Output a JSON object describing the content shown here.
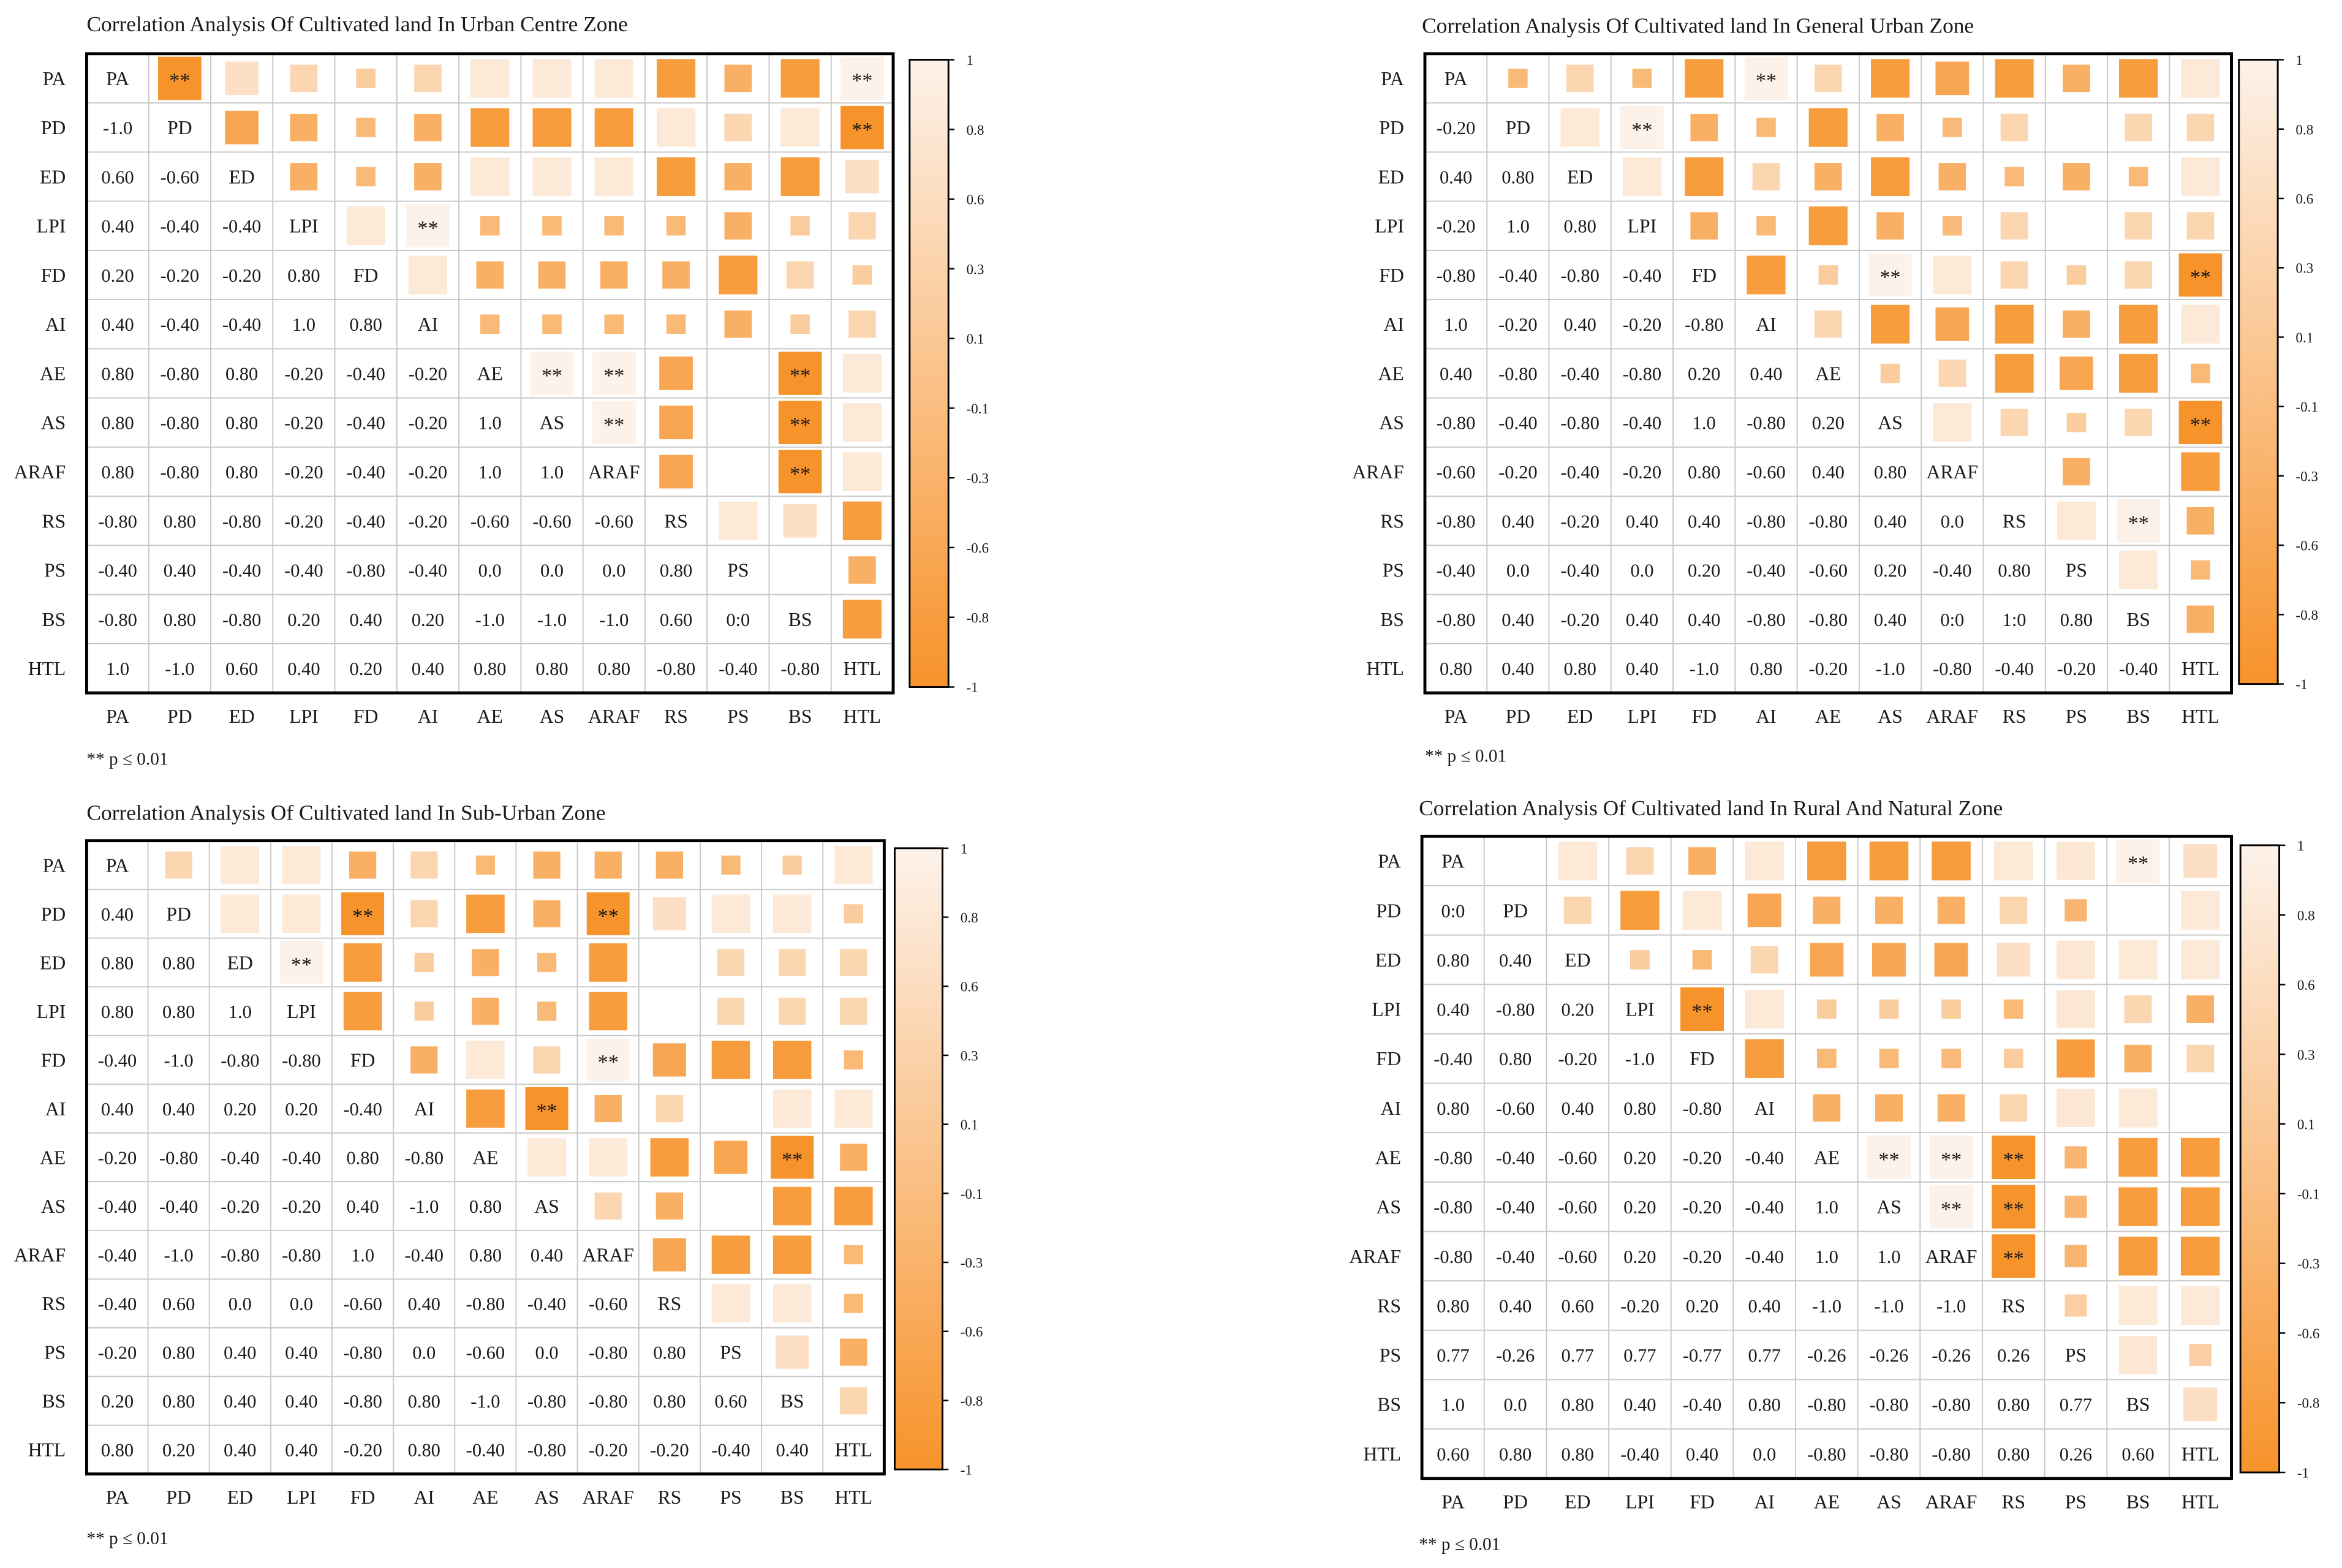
{
  "variables": [
    "PA",
    "PD",
    "ED",
    "LPI",
    "FD",
    "AI",
    "AE",
    "AS",
    "ARAF",
    "RS",
    "PS",
    "BS",
    "HTL"
  ],
  "colors": {
    "positive": "#fdf2ea",
    "negative": "#f7932b",
    "grid": "#c8c8c8",
    "frame": "#000000",
    "text": "#1a1a1a"
  },
  "colorbar_ticks": [
    "1",
    "0.8",
    "0.6",
    "0.3",
    "0.1",
    "-0.1",
    "-0.3",
    "-0.6",
    "-0.8",
    "-1"
  ],
  "significance_note": "** p ≤ 0.01",
  "significance_marker": "**",
  "chart_data": [
    {
      "type": "heatmap",
      "title": "Correlation Analysis Of Cultivated land In Urban Centre Zone",
      "variables": [
        "PA",
        "PD",
        "ED",
        "LPI",
        "FD",
        "AI",
        "AE",
        "AS",
        "ARAF",
        "RS",
        "PS",
        "BS",
        "HTL"
      ],
      "range": [
        -1,
        1
      ],
      "lower": [
        [
          "-1.0"
        ],
        [
          "0.60",
          "-0.60"
        ],
        [
          "0.40",
          "-0.40",
          "-0.40"
        ],
        [
          "0.20",
          "-0.20",
          "-0.20",
          "0.80"
        ],
        [
          "0.40",
          "-0.40",
          "-0.40",
          "1.0",
          "0.80"
        ],
        [
          "0.80",
          "-0.80",
          "0.80",
          "-0.20",
          "-0.40",
          "-0.20"
        ],
        [
          "0.80",
          "-0.80",
          "0.80",
          "-0.20",
          "-0.40",
          "-0.20",
          "1.0"
        ],
        [
          "0.80",
          "-0.80",
          "0.80",
          "-0.20",
          "-0.40",
          "-0.20",
          "1.0",
          "1.0"
        ],
        [
          "-0.80",
          "0.80",
          "-0.80",
          "-0.20",
          "-0.40",
          "-0.20",
          "-0.60",
          "-0.60",
          "-0.60"
        ],
        [
          "-0.40",
          "0.40",
          "-0.40",
          "-0.40",
          "-0.80",
          "-0.40",
          "0.0",
          "0.0",
          "0.0",
          "0.80"
        ],
        [
          "-0.80",
          "0.80",
          "-0.80",
          "0.20",
          "0.40",
          "0.20",
          "-1.0",
          "-1.0",
          "-1.0",
          "0.60",
          "0:0"
        ],
        [
          "1.0",
          "-1.0",
          "0.60",
          "0.40",
          "0.20",
          "0.40",
          "0.80",
          "0.80",
          "0.80",
          "-0.80",
          "-0.40",
          "-0.80"
        ]
      ],
      "significant": [
        [
          0,
          1
        ],
        [
          0,
          12
        ],
        [
          1,
          12
        ],
        [
          3,
          5
        ],
        [
          6,
          7
        ],
        [
          6,
          8
        ],
        [
          7,
          8
        ],
        [
          6,
          11
        ],
        [
          7,
          11
        ],
        [
          8,
          11
        ]
      ]
    },
    {
      "type": "heatmap",
      "title": "Correlation Analysis Of Cultivated land In General Urban Zone",
      "variables": [
        "PA",
        "PD",
        "ED",
        "LPI",
        "FD",
        "AI",
        "AE",
        "AS",
        "ARAF",
        "RS",
        "PS",
        "BS",
        "HTL"
      ],
      "range": [
        -1,
        1
      ],
      "lower": [
        [
          "-0.20"
        ],
        [
          "0.40",
          "0.80"
        ],
        [
          "-0.20",
          "1.0",
          "0.80"
        ],
        [
          "-0.80",
          "-0.40",
          "-0.80",
          "-0.40"
        ],
        [
          "1.0",
          "-0.20",
          "0.40",
          "-0.20",
          "-0.80"
        ],
        [
          "0.40",
          "-0.80",
          "-0.40",
          "-0.80",
          "0.20",
          "0.40"
        ],
        [
          "-0.80",
          "-0.40",
          "-0.80",
          "-0.40",
          "1.0",
          "-0.80",
          "0.20"
        ],
        [
          "-0.60",
          "-0.20",
          "-0.40",
          "-0.20",
          "0.80",
          "-0.60",
          "0.40",
          "0.80"
        ],
        [
          "-0.80",
          "0.40",
          "-0.20",
          "0.40",
          "0.40",
          "-0.80",
          "-0.80",
          "0.40",
          "0.0"
        ],
        [
          "-0.40",
          "0.0",
          "-0.40",
          "0.0",
          "0.20",
          "-0.40",
          "-0.60",
          "0.20",
          "-0.40",
          "0.80"
        ],
        [
          "-0.80",
          "0.40",
          "-0.20",
          "0.40",
          "0.40",
          "-0.80",
          "-0.80",
          "0.40",
          "0:0",
          "1:0",
          "0.80"
        ],
        [
          "0.80",
          "0.40",
          "0.80",
          "0.40",
          "-1.0",
          "0.80",
          "-0.20",
          "-1.0",
          "-0.80",
          "-0.40",
          "-0.20",
          "-0.40"
        ]
      ],
      "significant": [
        [
          0,
          5
        ],
        [
          1,
          3
        ],
        [
          4,
          7
        ],
        [
          4,
          12
        ],
        [
          7,
          12
        ],
        [
          9,
          11
        ]
      ]
    },
    {
      "type": "heatmap",
      "title": "Correlation Analysis Of Cultivated land In Sub-Urban Zone",
      "variables": [
        "PA",
        "PD",
        "ED",
        "LPI",
        "FD",
        "AI",
        "AE",
        "AS",
        "ARAF",
        "RS",
        "PS",
        "BS",
        "HTL"
      ],
      "range": [
        -1,
        1
      ],
      "lower": [
        [
          "0.40"
        ],
        [
          "0.80",
          "0.80"
        ],
        [
          "0.80",
          "0.80",
          "1.0"
        ],
        [
          "-0.40",
          "-1.0",
          "-0.80",
          "-0.80"
        ],
        [
          "0.40",
          "0.40",
          "0.20",
          "0.20",
          "-0.40"
        ],
        [
          "-0.20",
          "-0.80",
          "-0.40",
          "-0.40",
          "0.80",
          "-0.80"
        ],
        [
          "-0.40",
          "-0.40",
          "-0.20",
          "-0.20",
          "0.40",
          "-1.0",
          "0.80"
        ],
        [
          "-0.40",
          "-1.0",
          "-0.80",
          "-0.80",
          "1.0",
          "-0.40",
          "0.80",
          "0.40"
        ],
        [
          "-0.40",
          "0.60",
          "0.0",
          "0.0",
          "-0.60",
          "0.40",
          "-0.80",
          "-0.40",
          "-0.60"
        ],
        [
          "-0.20",
          "0.80",
          "0.40",
          "0.40",
          "-0.80",
          "0.0",
          "-0.60",
          "0.0",
          "-0.80",
          "0.80"
        ],
        [
          "0.20",
          "0.80",
          "0.40",
          "0.40",
          "-0.80",
          "0.80",
          "-1.0",
          "-0.80",
          "-0.80",
          "0.80",
          "0.60"
        ],
        [
          "0.80",
          "0.20",
          "0.40",
          "0.40",
          "-0.20",
          "0.80",
          "-0.40",
          "-0.80",
          "-0.20",
          "-0.20",
          "-0.40",
          "0.40"
        ]
      ],
      "significant": [
        [
          1,
          4
        ],
        [
          1,
          8
        ],
        [
          2,
          3
        ],
        [
          4,
          8
        ],
        [
          5,
          7
        ],
        [
          6,
          11
        ]
      ]
    },
    {
      "type": "heatmap",
      "title": "Correlation Analysis Of Cultivated land In Rural And Natural Zone",
      "variables": [
        "PA",
        "PD",
        "ED",
        "LPI",
        "FD",
        "AI",
        "AE",
        "AS",
        "ARAF",
        "RS",
        "PS",
        "BS",
        "HTL"
      ],
      "range": [
        -1,
        1
      ],
      "lower": [
        [
          "0:0"
        ],
        [
          "0.80",
          "0.40"
        ],
        [
          "0.40",
          "-0.80",
          "0.20"
        ],
        [
          "-0.40",
          "0.80",
          "-0.20",
          "-1.0"
        ],
        [
          "0.80",
          "-0.60",
          "0.40",
          "0.80",
          "-0.80"
        ],
        [
          "-0.80",
          "-0.40",
          "-0.60",
          "0.20",
          "-0.20",
          "-0.40"
        ],
        [
          "-0.80",
          "-0.40",
          "-0.60",
          "0.20",
          "-0.20",
          "-0.40",
          "1.0"
        ],
        [
          "-0.80",
          "-0.40",
          "-0.60",
          "0.20",
          "-0.20",
          "-0.40",
          "1.0",
          "1.0"
        ],
        [
          "0.80",
          "0.40",
          "0.60",
          "-0.20",
          "0.20",
          "0.40",
          "-1.0",
          "-1.0",
          "-1.0"
        ],
        [
          "0.77",
          "-0.26",
          "0.77",
          "0.77",
          "-0.77",
          "0.77",
          "-0.26",
          "-0.26",
          "-0.26",
          "0.26"
        ],
        [
          "1.0",
          "0.0",
          "0.80",
          "0.40",
          "-0.40",
          "0.80",
          "-0.80",
          "-0.80",
          "-0.80",
          "0.80",
          "0.77"
        ],
        [
          "0.60",
          "0.80",
          "0.80",
          "-0.40",
          "0.40",
          "0.0",
          "-0.80",
          "-0.80",
          "-0.80",
          "0.80",
          "0.26",
          "0.60"
        ]
      ],
      "significant": [
        [
          0,
          11
        ],
        [
          3,
          4
        ],
        [
          6,
          7
        ],
        [
          6,
          8
        ],
        [
          7,
          8
        ],
        [
          6,
          9
        ],
        [
          7,
          9
        ],
        [
          8,
          9
        ]
      ]
    }
  ]
}
